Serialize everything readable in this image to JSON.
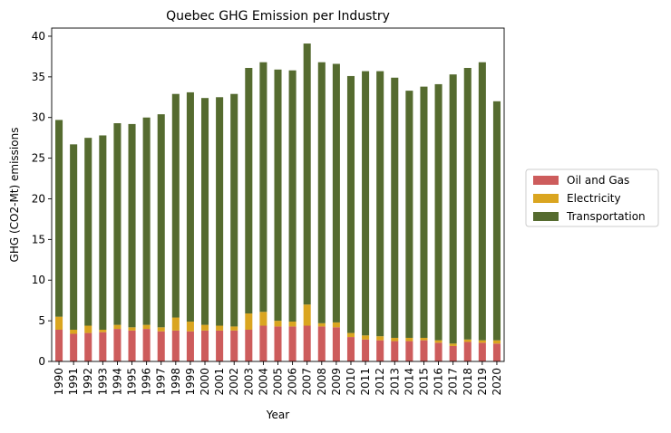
{
  "chart_data": {
    "type": "bar",
    "stacked": true,
    "title": "Quebec GHG Emission per Industry",
    "xlabel": "Year",
    "ylabel": "GHG (CO2-Mt) emissions",
    "ylim": [
      0,
      41
    ],
    "yticks": [
      0,
      5,
      10,
      15,
      20,
      25,
      30,
      35,
      40
    ],
    "grid": false,
    "legend_position": "outside-right",
    "categories": [
      "1990",
      "1991",
      "1992",
      "1993",
      "1994",
      "1995",
      "1996",
      "1997",
      "1998",
      "1999",
      "2000",
      "2001",
      "2002",
      "2003",
      "2004",
      "2005",
      "2006",
      "2007",
      "2008",
      "2009",
      "2010",
      "2011",
      "2012",
      "2013",
      "2014",
      "2015",
      "2016",
      "2017",
      "2018",
      "2019",
      "2020"
    ],
    "series": [
      {
        "name": "Oil and Gas",
        "color": "#cd5c5c",
        "values": [
          3.9,
          3.4,
          3.5,
          3.6,
          4.0,
          3.8,
          4.0,
          3.7,
          3.8,
          3.7,
          3.8,
          3.8,
          3.8,
          3.9,
          4.4,
          4.3,
          4.3,
          4.4,
          4.3,
          4.2,
          3.0,
          2.7,
          2.6,
          2.5,
          2.5,
          2.6,
          2.3,
          1.9,
          2.4,
          2.3,
          2.2
        ]
      },
      {
        "name": "Electricity",
        "color": "#daa520",
        "values": [
          1.6,
          0.5,
          0.9,
          0.3,
          0.5,
          0.4,
          0.5,
          0.5,
          1.6,
          1.2,
          0.7,
          0.6,
          0.5,
          2.0,
          1.7,
          0.7,
          0.6,
          2.6,
          0.4,
          0.6,
          0.5,
          0.5,
          0.5,
          0.4,
          0.4,
          0.3,
          0.3,
          0.3,
          0.3,
          0.3,
          0.4
        ]
      },
      {
        "name": "Transportation",
        "color": "#556b2f",
        "values": [
          24.2,
          22.8,
          23.1,
          23.9,
          24.8,
          25.0,
          25.5,
          26.2,
          27.5,
          28.2,
          27.9,
          28.1,
          28.6,
          30.2,
          30.7,
          30.9,
          30.9,
          32.1,
          32.1,
          31.8,
          31.6,
          32.5,
          32.6,
          32.0,
          30.4,
          30.9,
          31.5,
          33.1,
          33.4,
          34.2,
          29.4
        ]
      }
    ]
  }
}
